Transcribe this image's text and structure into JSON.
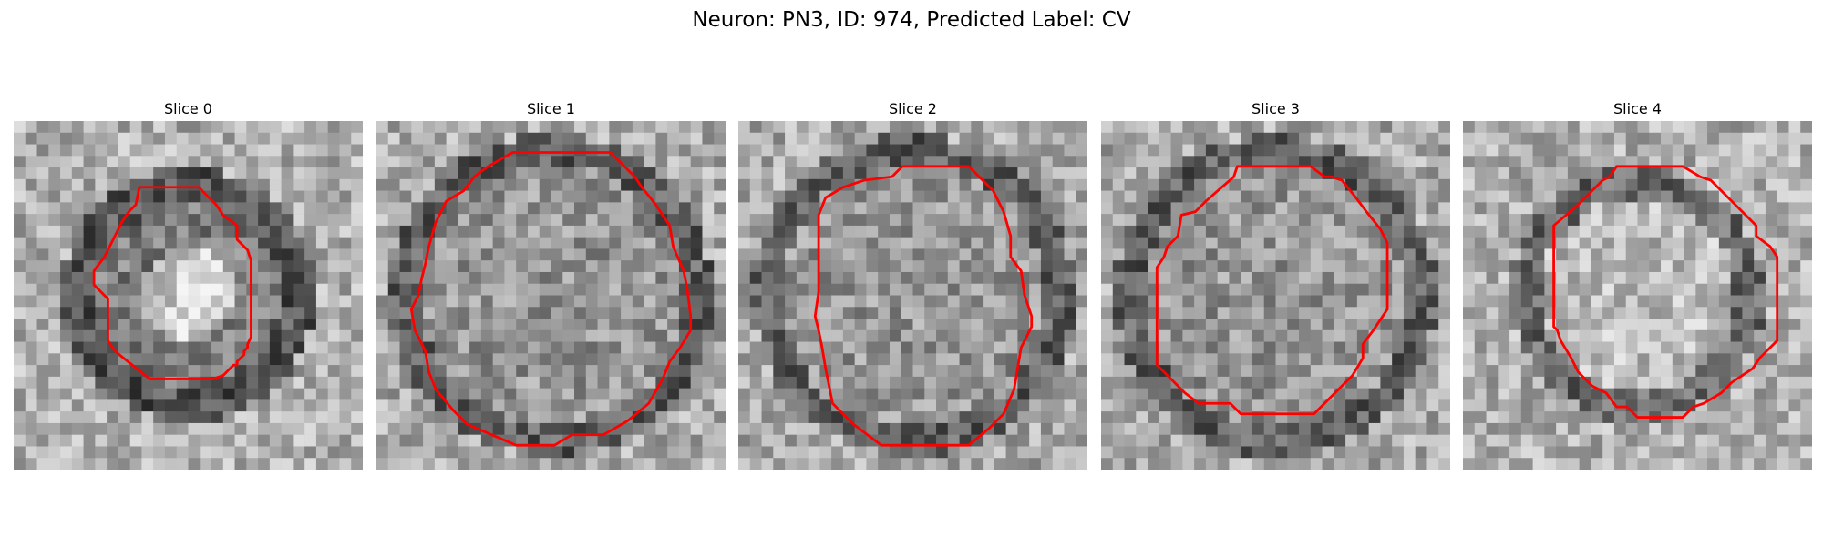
{
  "figure": {
    "title": "Neuron: PN3, ID: 974, Predicted Label: CV",
    "contour_color": "#ff0000"
  },
  "panels": [
    {
      "label": "Slice 0",
      "seed": 11,
      "contour": [
        [
          0.36,
          0.19
        ],
        [
          0.53,
          0.19
        ],
        [
          0.58,
          0.24
        ],
        [
          0.6,
          0.27
        ],
        [
          0.64,
          0.3
        ],
        [
          0.64,
          0.34
        ],
        [
          0.67,
          0.37
        ],
        [
          0.68,
          0.4
        ],
        [
          0.68,
          0.62
        ],
        [
          0.67,
          0.64
        ],
        [
          0.67,
          0.65
        ],
        [
          0.66,
          0.66
        ],
        [
          0.66,
          0.67
        ],
        [
          0.64,
          0.69
        ],
        [
          0.64,
          0.7
        ],
        [
          0.63,
          0.7
        ],
        [
          0.62,
          0.71
        ],
        [
          0.6,
          0.73
        ],
        [
          0.57,
          0.74
        ],
        [
          0.39,
          0.74
        ],
        [
          0.34,
          0.7
        ],
        [
          0.29,
          0.66
        ],
        [
          0.27,
          0.63
        ],
        [
          0.27,
          0.51
        ],
        [
          0.23,
          0.47
        ],
        [
          0.23,
          0.43
        ],
        [
          0.26,
          0.39
        ],
        [
          0.28,
          0.35
        ],
        [
          0.31,
          0.29
        ],
        [
          0.33,
          0.26
        ],
        [
          0.35,
          0.24
        ]
      ],
      "mode": "bright-center"
    },
    {
      "label": "Slice 1",
      "seed": 23,
      "contour": [
        [
          0.39,
          0.09
        ],
        [
          0.67,
          0.09
        ],
        [
          0.74,
          0.16
        ],
        [
          0.76,
          0.19
        ],
        [
          0.8,
          0.24
        ],
        [
          0.84,
          0.3
        ],
        [
          0.85,
          0.36
        ],
        [
          0.88,
          0.43
        ],
        [
          0.89,
          0.48
        ],
        [
          0.9,
          0.56
        ],
        [
          0.9,
          0.6
        ],
        [
          0.87,
          0.65
        ],
        [
          0.84,
          0.69
        ],
        [
          0.82,
          0.74
        ],
        [
          0.78,
          0.81
        ],
        [
          0.72,
          0.86
        ],
        [
          0.65,
          0.9
        ],
        [
          0.56,
          0.9
        ],
        [
          0.51,
          0.93
        ],
        [
          0.4,
          0.93
        ],
        [
          0.33,
          0.9
        ],
        [
          0.26,
          0.87
        ],
        [
          0.22,
          0.83
        ],
        [
          0.17,
          0.77
        ],
        [
          0.15,
          0.72
        ],
        [
          0.14,
          0.66
        ],
        [
          0.11,
          0.6
        ],
        [
          0.1,
          0.54
        ],
        [
          0.12,
          0.5
        ],
        [
          0.13,
          0.45
        ],
        [
          0.14,
          0.41
        ],
        [
          0.15,
          0.36
        ],
        [
          0.17,
          0.29
        ],
        [
          0.2,
          0.23
        ],
        [
          0.25,
          0.2
        ],
        [
          0.28,
          0.16
        ],
        [
          0.32,
          0.13
        ]
      ],
      "mode": "texture"
    },
    {
      "label": "Slice 2",
      "seed": 37,
      "contour": [
        [
          0.36,
          0.17
        ],
        [
          0.44,
          0.16
        ],
        [
          0.47,
          0.13
        ],
        [
          0.66,
          0.13
        ],
        [
          0.73,
          0.2
        ],
        [
          0.76,
          0.26
        ],
        [
          0.78,
          0.33
        ],
        [
          0.78,
          0.39
        ],
        [
          0.81,
          0.43
        ],
        [
          0.82,
          0.5
        ],
        [
          0.84,
          0.56
        ],
        [
          0.84,
          0.59
        ],
        [
          0.81,
          0.65
        ],
        [
          0.8,
          0.71
        ],
        [
          0.79,
          0.77
        ],
        [
          0.76,
          0.84
        ],
        [
          0.72,
          0.88
        ],
        [
          0.66,
          0.93
        ],
        [
          0.41,
          0.93
        ],
        [
          0.33,
          0.87
        ],
        [
          0.27,
          0.81
        ],
        [
          0.25,
          0.71
        ],
        [
          0.24,
          0.65
        ],
        [
          0.23,
          0.6
        ],
        [
          0.22,
          0.56
        ],
        [
          0.23,
          0.49
        ],
        [
          0.23,
          0.43
        ],
        [
          0.23,
          0.34
        ],
        [
          0.23,
          0.27
        ],
        [
          0.25,
          0.22
        ],
        [
          0.3,
          0.19
        ]
      ],
      "mode": "texture"
    },
    {
      "label": "Slice 3",
      "seed": 53,
      "contour": [
        [
          0.3,
          0.23
        ],
        [
          0.38,
          0.16
        ],
        [
          0.39,
          0.13
        ],
        [
          0.6,
          0.13
        ],
        [
          0.64,
          0.16
        ],
        [
          0.66,
          0.16
        ],
        [
          0.69,
          0.17
        ],
        [
          0.73,
          0.22
        ],
        [
          0.76,
          0.26
        ],
        [
          0.8,
          0.31
        ],
        [
          0.82,
          0.35
        ],
        [
          0.82,
          0.54
        ],
        [
          0.78,
          0.6
        ],
        [
          0.75,
          0.64
        ],
        [
          0.75,
          0.68
        ],
        [
          0.72,
          0.73
        ],
        [
          0.68,
          0.77
        ],
        [
          0.64,
          0.81
        ],
        [
          0.61,
          0.84
        ],
        [
          0.4,
          0.84
        ],
        [
          0.37,
          0.81
        ],
        [
          0.28,
          0.81
        ],
        [
          0.24,
          0.78
        ],
        [
          0.2,
          0.74
        ],
        [
          0.16,
          0.7
        ],
        [
          0.16,
          0.61
        ],
        [
          0.16,
          0.42
        ],
        [
          0.18,
          0.39
        ],
        [
          0.19,
          0.36
        ],
        [
          0.22,
          0.33
        ],
        [
          0.23,
          0.27
        ],
        [
          0.27,
          0.26
        ]
      ],
      "mode": "texture"
    },
    {
      "label": "Slice 4",
      "seed": 71,
      "contour": [
        [
          0.42,
          0.16
        ],
        [
          0.44,
          0.13
        ],
        [
          0.63,
          0.13
        ],
        [
          0.68,
          0.16
        ],
        [
          0.71,
          0.17
        ],
        [
          0.76,
          0.22
        ],
        [
          0.8,
          0.26
        ],
        [
          0.84,
          0.3
        ],
        [
          0.84,
          0.33
        ],
        [
          0.88,
          0.36
        ],
        [
          0.9,
          0.39
        ],
        [
          0.9,
          0.63
        ],
        [
          0.85,
          0.68
        ],
        [
          0.83,
          0.71
        ],
        [
          0.8,
          0.73
        ],
        [
          0.77,
          0.75
        ],
        [
          0.74,
          0.78
        ],
        [
          0.69,
          0.81
        ],
        [
          0.66,
          0.82
        ],
        [
          0.63,
          0.85
        ],
        [
          0.5,
          0.85
        ],
        [
          0.47,
          0.82
        ],
        [
          0.44,
          0.82
        ],
        [
          0.41,
          0.78
        ],
        [
          0.37,
          0.76
        ],
        [
          0.33,
          0.72
        ],
        [
          0.31,
          0.68
        ],
        [
          0.28,
          0.63
        ],
        [
          0.27,
          0.6
        ],
        [
          0.26,
          0.59
        ],
        [
          0.26,
          0.3
        ],
        [
          0.33,
          0.24
        ],
        [
          0.36,
          0.21
        ],
        [
          0.4,
          0.17
        ]
      ],
      "mode": "ring"
    }
  ]
}
